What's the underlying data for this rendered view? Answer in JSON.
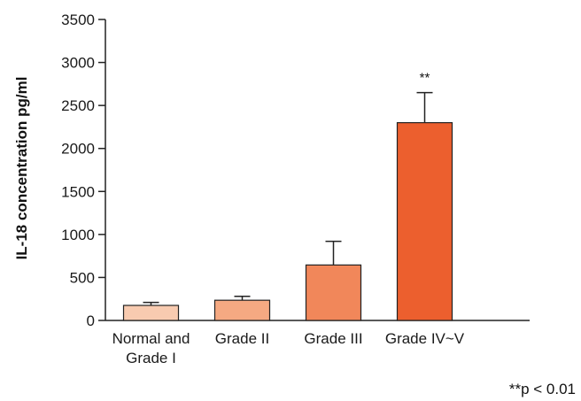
{
  "chart_data": {
    "type": "bar",
    "title": "",
    "xlabel": "",
    "ylabel": "IL-18 concentration pg/ml",
    "ylim": [
      0,
      3500
    ],
    "yticks": [
      0,
      500,
      1000,
      1500,
      2000,
      2500,
      3000,
      3500
    ],
    "ytick_labels": [
      "0",
      "500",
      "1000",
      "1500",
      "2000",
      "2500",
      "3000",
      "3500"
    ],
    "grid": false,
    "categories": [
      [
        "Normal and",
        "Grade I"
      ],
      [
        "Grade II"
      ],
      [
        "Grade III"
      ],
      [
        "Grade IV~V"
      ]
    ],
    "values": [
      175,
      235,
      645,
      2300
    ],
    "error_upper": [
      210,
      280,
      920,
      2650
    ],
    "colors": [
      "#f8cbb0",
      "#f5a982",
      "#f1875a",
      "#ec5f2e"
    ],
    "annotations": [
      {
        "category_index": 3,
        "text": "**"
      }
    ],
    "footnote": "**p < 0.01"
  }
}
